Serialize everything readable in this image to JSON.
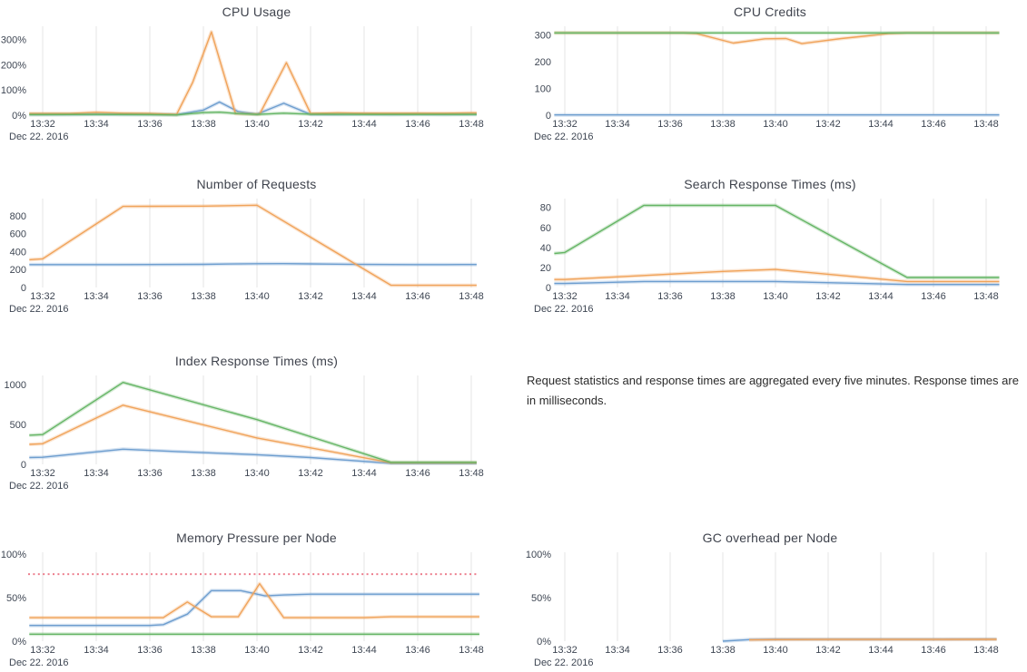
{
  "page": {
    "date_label": "Dec 22. 2016"
  },
  "note": {
    "text": "Request statistics and response times are aggregated every five minutes. Response times are in milliseconds."
  },
  "palette": {
    "blue": "#6e9ecf",
    "orange": "#f0a35a",
    "green": "#65b565",
    "red": "#ed7f8e",
    "grid": "#e4e4e4",
    "tick_text": "#3e4653",
    "title_text": "#3f434d"
  },
  "x_axis": {
    "min": 0,
    "max": 16,
    "ticks": [
      {
        "v": 0,
        "label": "13:32"
      },
      {
        "v": 2,
        "label": "13:34"
      },
      {
        "v": 4,
        "label": "13:36"
      },
      {
        "v": 6,
        "label": "13:38"
      },
      {
        "v": 8,
        "label": "13:40"
      },
      {
        "v": 10,
        "label": "13:42"
      },
      {
        "v": 12,
        "label": "13:44"
      },
      {
        "v": 14,
        "label": "13:46"
      },
      {
        "v": 16,
        "label": "13:48"
      }
    ]
  },
  "chart_data": [
    {
      "type": "line",
      "title": "CPU Usage",
      "ylim": [
        0,
        345
      ],
      "yticks": [
        {
          "v": 0,
          "label": "0%"
        },
        {
          "v": 100,
          "label": "100%"
        },
        {
          "v": 200,
          "label": "200%"
        },
        {
          "v": 300,
          "label": "300%"
        }
      ],
      "series": [
        {
          "name": "blue",
          "color_key": "blue",
          "points": [
            [
              -0.5,
              3
            ],
            [
              0,
              3
            ],
            [
              1,
              3
            ],
            [
              2,
              4
            ],
            [
              3,
              3
            ],
            [
              4,
              3
            ],
            [
              5,
              2
            ],
            [
              6,
              20
            ],
            [
              6.6,
              52
            ],
            [
              7.3,
              14
            ],
            [
              8,
              4
            ],
            [
              9,
              47
            ],
            [
              10,
              3
            ],
            [
              11,
              3
            ],
            [
              12,
              4
            ],
            [
              13,
              3
            ],
            [
              14,
              4
            ],
            [
              15,
              3
            ],
            [
              16,
              4
            ],
            [
              16.2,
              4
            ]
          ]
        },
        {
          "name": "orange",
          "color_key": "orange",
          "points": [
            [
              -0.5,
              7
            ],
            [
              0,
              7
            ],
            [
              1,
              7
            ],
            [
              2,
              11
            ],
            [
              3,
              8
            ],
            [
              4,
              7
            ],
            [
              5,
              3
            ],
            [
              5.6,
              130
            ],
            [
              6.3,
              330
            ],
            [
              7.2,
              6
            ],
            [
              8.1,
              4
            ],
            [
              9.1,
              208
            ],
            [
              10,
              7
            ],
            [
              11,
              9
            ],
            [
              12,
              8
            ],
            [
              13,
              8
            ],
            [
              14,
              8
            ],
            [
              15,
              8
            ],
            [
              16,
              9
            ],
            [
              16.2,
              9
            ]
          ]
        },
        {
          "name": "green",
          "color_key": "green",
          "points": [
            [
              -0.5,
              2
            ],
            [
              0,
              2
            ],
            [
              2,
              3
            ],
            [
              4,
              2
            ],
            [
              5,
              1
            ],
            [
              6,
              10
            ],
            [
              6.6,
              12
            ],
            [
              7.3,
              6
            ],
            [
              8,
              3
            ],
            [
              9,
              8
            ],
            [
              10,
              4
            ],
            [
              12,
              3
            ],
            [
              14,
              3
            ],
            [
              16,
              3
            ],
            [
              16.2,
              3
            ]
          ]
        }
      ]
    },
    {
      "type": "line",
      "title": "CPU Credits",
      "ylim": [
        0,
        326
      ],
      "yticks": [
        {
          "v": 0,
          "label": "0"
        },
        {
          "v": 100,
          "label": "100"
        },
        {
          "v": 200,
          "label": "200"
        },
        {
          "v": 300,
          "label": "300"
        }
      ],
      "series": [
        {
          "name": "blue",
          "color_key": "blue",
          "points": [
            [
              -0.4,
              1
            ],
            [
              16.5,
              1
            ]
          ]
        },
        {
          "name": "orange",
          "color_key": "orange",
          "points": [
            [
              -0.4,
              308
            ],
            [
              0,
              308
            ],
            [
              4.5,
              308
            ],
            [
              5,
              306
            ],
            [
              6.4,
              270
            ],
            [
              7.6,
              286
            ],
            [
              8.4,
              287
            ],
            [
              9,
              268
            ],
            [
              10.5,
              287
            ],
            [
              11.5,
              297
            ],
            [
              12.3,
              306
            ],
            [
              13,
              308
            ],
            [
              14,
              308
            ],
            [
              15,
              308
            ],
            [
              16,
              308
            ],
            [
              16.5,
              308
            ]
          ]
        },
        {
          "name": "green",
          "color_key": "green",
          "points": [
            [
              -0.4,
              308
            ],
            [
              16.5,
              308
            ]
          ]
        }
      ]
    },
    {
      "type": "line",
      "title": "Number of Requests",
      "ylim": [
        0,
        972
      ],
      "yticks": [
        {
          "v": 0,
          "label": "0"
        },
        {
          "v": 200,
          "label": "200"
        },
        {
          "v": 400,
          "label": "400"
        },
        {
          "v": 600,
          "label": "600"
        },
        {
          "v": 800,
          "label": "800"
        }
      ],
      "series": [
        {
          "name": "blue",
          "color_key": "blue",
          "points": [
            [
              -0.5,
              255
            ],
            [
              0,
              255
            ],
            [
              2,
              255
            ],
            [
              4,
              256
            ],
            [
              6,
              258
            ],
            [
              7,
              262
            ],
            [
              8,
              265
            ],
            [
              9,
              266
            ],
            [
              10,
              263
            ],
            [
              11,
              260
            ],
            [
              12,
              257
            ],
            [
              13,
              256
            ],
            [
              14,
              255
            ],
            [
              15,
              255
            ],
            [
              16,
              256
            ],
            [
              16.2,
              256
            ]
          ]
        },
        {
          "name": "orange",
          "color_key": "orange",
          "points": [
            [
              -0.5,
              310
            ],
            [
              0,
              320
            ],
            [
              3,
              905
            ],
            [
              4,
              906
            ],
            [
              6,
              908
            ],
            [
              8,
              918
            ],
            [
              13,
              25
            ],
            [
              14,
              24
            ],
            [
              16.2,
              24
            ]
          ]
        }
      ]
    },
    {
      "type": "line",
      "title": "Search Response Times (ms)",
      "ylim": [
        0,
        87
      ],
      "yticks": [
        {
          "v": 0,
          "label": "0"
        },
        {
          "v": 20,
          "label": "20"
        },
        {
          "v": 40,
          "label": "40"
        },
        {
          "v": 60,
          "label": "60"
        },
        {
          "v": 80,
          "label": "80"
        }
      ],
      "series": [
        {
          "name": "blue",
          "color_key": "blue",
          "points": [
            [
              -0.4,
              4
            ],
            [
              0,
              4
            ],
            [
              3,
              6
            ],
            [
              8,
              6
            ],
            [
              13,
              3
            ],
            [
              16.5,
              3
            ]
          ]
        },
        {
          "name": "orange",
          "color_key": "orange",
          "points": [
            [
              -0.4,
              8
            ],
            [
              0,
              8
            ],
            [
              3,
              12
            ],
            [
              6,
              16
            ],
            [
              8,
              18
            ],
            [
              13,
              6
            ],
            [
              16.5,
              6
            ]
          ]
        },
        {
          "name": "green",
          "color_key": "green",
          "points": [
            [
              -0.4,
              34
            ],
            [
              0,
              35
            ],
            [
              3,
              82
            ],
            [
              8,
              82
            ],
            [
              13,
              10
            ],
            [
              16.5,
              10
            ]
          ]
        }
      ]
    },
    {
      "type": "line",
      "title": "Index Response Times (ms)",
      "ylim": [
        0,
        1090
      ],
      "yticks": [
        {
          "v": 0,
          "label": "0"
        },
        {
          "v": 500,
          "label": "500"
        },
        {
          "v": 1000,
          "label": "1000"
        }
      ],
      "series": [
        {
          "name": "blue",
          "color_key": "blue",
          "points": [
            [
              -0.5,
              85
            ],
            [
              0,
              88
            ],
            [
              3,
              190
            ],
            [
              5,
              160
            ],
            [
              8,
              120
            ],
            [
              10,
              85
            ],
            [
              13,
              12
            ],
            [
              16.2,
              12
            ]
          ]
        },
        {
          "name": "orange",
          "color_key": "orange",
          "points": [
            [
              -0.5,
              250
            ],
            [
              0,
              258
            ],
            [
              3,
              740
            ],
            [
              8,
              330
            ],
            [
              13,
              20
            ],
            [
              16.2,
              20
            ]
          ]
        },
        {
          "name": "green",
          "color_key": "green",
          "points": [
            [
              -0.5,
              365
            ],
            [
              0,
              372
            ],
            [
              3,
              1025
            ],
            [
              8,
              560
            ],
            [
              13,
              25
            ],
            [
              16.2,
              25
            ]
          ]
        }
      ]
    },
    {
      "type": "line",
      "title": "Memory Pressure per Node",
      "ylim": [
        0,
        100
      ],
      "yticks": [
        {
          "v": 0,
          "label": "0%"
        },
        {
          "v": 50,
          "label": "50%"
        },
        {
          "v": 100,
          "label": "100%"
        }
      ],
      "threshold": {
        "v": 77,
        "color_key": "red",
        "style": "dotted"
      },
      "series": [
        {
          "name": "blue",
          "color_key": "blue",
          "points": [
            [
              -0.5,
              18
            ],
            [
              0,
              18
            ],
            [
              4,
              18
            ],
            [
              4.5,
              19
            ],
            [
              5.4,
              31
            ],
            [
              6.3,
              58
            ],
            [
              7.4,
              58
            ],
            [
              8.3,
              52
            ],
            [
              9,
              53
            ],
            [
              10,
              54
            ],
            [
              12,
              54
            ],
            [
              14,
              54
            ],
            [
              16,
              54
            ],
            [
              16.3,
              54
            ]
          ]
        },
        {
          "name": "orange",
          "color_key": "orange",
          "points": [
            [
              -0.5,
              27
            ],
            [
              0,
              27
            ],
            [
              4.5,
              27
            ],
            [
              5.4,
              45
            ],
            [
              6.3,
              28
            ],
            [
              7.3,
              28
            ],
            [
              8.1,
              66
            ],
            [
              9,
              27
            ],
            [
              12,
              27
            ],
            [
              13,
              28
            ],
            [
              16,
              28
            ],
            [
              16.3,
              28
            ]
          ]
        },
        {
          "name": "green",
          "color_key": "green",
          "points": [
            [
              -0.5,
              8
            ],
            [
              16.3,
              8
            ]
          ]
        }
      ]
    },
    {
      "type": "line",
      "title": "GC overhead per Node",
      "ylim": [
        0,
        100
      ],
      "yticks": [
        {
          "v": 0,
          "label": "0%"
        },
        {
          "v": 50,
          "label": "50%"
        },
        {
          "v": 100,
          "label": "100%"
        }
      ],
      "series": [
        {
          "name": "blue",
          "color_key": "blue",
          "points": [
            [
              6,
              0
            ],
            [
              7,
              1.8
            ],
            [
              8,
              2.2
            ],
            [
              10,
              2.2
            ],
            [
              12,
              2.2
            ],
            [
              14,
              2.2
            ],
            [
              16,
              2.3
            ],
            [
              16.4,
              2.3
            ]
          ]
        },
        {
          "name": "orange",
          "color_key": "orange",
          "points": [
            [
              7,
              1.5
            ],
            [
              8,
              1.8
            ],
            [
              10,
              2
            ],
            [
              12,
              2
            ],
            [
              14,
              2
            ],
            [
              16,
              2.1
            ],
            [
              16.4,
              2.1
            ]
          ]
        }
      ]
    }
  ]
}
